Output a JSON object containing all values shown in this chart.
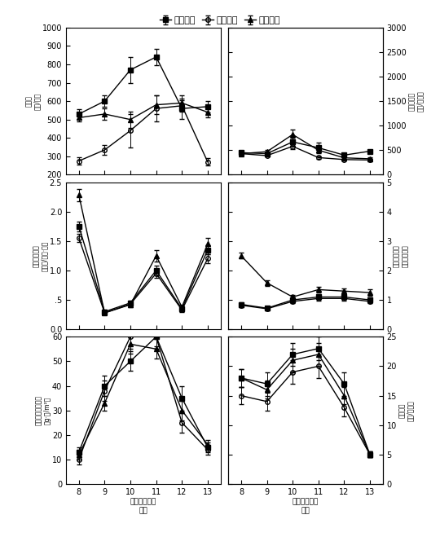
{
  "legend_labels": [
    "常规水稺",
    "传统鸭稺",
    "两鸭套养"
  ],
  "x": [
    8,
    9,
    10,
    11,
    12,
    13
  ],
  "panel_top_left": {
    "series": [
      [
        530,
        600,
        770,
        840,
        560,
        570
      ],
      [
        275,
        335,
        440,
        560,
        575,
        270
      ],
      [
        510,
        530,
        500,
        580,
        590,
        540
      ]
    ],
    "yerr": [
      [
        25,
        30,
        70,
        45,
        55,
        30
      ],
      [
        20,
        25,
        90,
        70,
        30,
        20
      ],
      [
        20,
        30,
        45,
        50,
        40,
        30
      ]
    ],
    "ylim": [
      200,
      1000
    ],
    "yticks": [
      200,
      300,
      400,
      500,
      600,
      700,
      800,
      900,
      1000
    ],
    "ylabel_left": "稼飞虏\n（头/丛）",
    "xlabel": ""
  },
  "panel_top_right": {
    "series": [
      [
        450,
        430,
        670,
        550,
        400,
        480
      ],
      [
        430,
        390,
        580,
        350,
        310,
        300
      ],
      [
        430,
        470,
        820,
        500,
        345,
        325
      ]
    ],
    "yerr": [
      [
        30,
        30,
        80,
        100,
        30,
        30
      ],
      [
        20,
        20,
        50,
        30,
        20,
        20
      ],
      [
        20,
        35,
        100,
        60,
        25,
        25
      ]
    ],
    "ylim": [
      0,
      3000
    ],
    "yticks": [
      0,
      500,
      1000,
      1500,
      2000,
      2500,
      3000
    ],
    "ylabel_right": "稼纵卷叶蟟\n（头/百丛）",
    "xlabel": ""
  },
  "panel_mid_left": {
    "series": [
      [
        1.75,
        0.3,
        0.45,
        1.0,
        0.35,
        1.35
      ],
      [
        1.55,
        0.28,
        0.43,
        0.95,
        0.33,
        1.2
      ],
      [
        2.28,
        0.28,
        0.42,
        1.25,
        0.38,
        1.45
      ]
    ],
    "yerr": [
      [
        0.08,
        0.04,
        0.04,
        0.08,
        0.04,
        0.08
      ],
      [
        0.07,
        0.03,
        0.04,
        0.07,
        0.03,
        0.07
      ],
      [
        0.1,
        0.03,
        0.04,
        0.1,
        0.04,
        0.1
      ]
    ],
    "ylim": [
      0.0,
      2.5
    ],
    "yticks": [
      0.0,
      0.5,
      1.0,
      1.5,
      2.0,
      2.5
    ],
    "ytick_labels": [
      "0.0",
      ".5",
      "1.0",
      "1.5",
      "2.0",
      "2.5"
    ],
    "ylabel_left": "三化蟟钒蛀率\n（蛀茎/百丛·天）",
    "xlabel": ""
  },
  "panel_mid_right": {
    "series": [
      [
        0.85,
        0.72,
        1.0,
        1.1,
        1.1,
        1.0
      ],
      [
        0.82,
        0.7,
        0.95,
        1.05,
        1.05,
        0.95
      ],
      [
        2.5,
        1.58,
        1.1,
        1.35,
        1.3,
        1.25
      ]
    ],
    "yerr": [
      [
        0.06,
        0.06,
        0.08,
        0.08,
        0.08,
        0.08
      ],
      [
        0.06,
        0.05,
        0.07,
        0.07,
        0.07,
        0.07
      ],
      [
        0.1,
        0.1,
        0.08,
        0.1,
        0.1,
        0.1
      ]
    ],
    "ylim": [
      0,
      5
    ],
    "yticks": [
      0,
      1,
      2,
      3,
      4,
      5
    ],
    "ylabel_right": "二化蟟蛀茎率\n（以百丛计）",
    "xlabel": ""
  },
  "panel_bot_left": {
    "series": [
      [
        13,
        40,
        50,
        60,
        35,
        15
      ],
      [
        10,
        38,
        60,
        60,
        25,
        14
      ],
      [
        12,
        33,
        57,
        55,
        30,
        16
      ]
    ],
    "yerr": [
      [
        2,
        4,
        4,
        5,
        5,
        2
      ],
      [
        2,
        4,
        5,
        4,
        4,
        2
      ],
      [
        2,
        3,
        4,
        4,
        4,
        2
      ]
    ],
    "ylim": [
      0,
      60
    ],
    "yticks": [
      0,
      10,
      20,
      30,
      40,
      50,
      60
    ],
    "ylabel_left": "稼田杂草鲜草重量\n（g·田/m²）",
    "xlabel": "水稼移栽周数\n早稼"
  },
  "panel_bot_right": {
    "series": [
      [
        18,
        17,
        22,
        23,
        17,
        5
      ],
      [
        15,
        14,
        19,
        20,
        13,
        5
      ],
      [
        18,
        16,
        21,
        22,
        15,
        5
      ]
    ],
    "yerr": [
      [
        1.5,
        2,
        2,
        2,
        2,
        0.5
      ],
      [
        1.5,
        1.5,
        2,
        2,
        1.5,
        0.5
      ],
      [
        1.5,
        1.5,
        2,
        2,
        1.5,
        0.5
      ]
    ],
    "ylim": [
      0,
      25
    ],
    "yticks": [
      0,
      5,
      10,
      15,
      20,
      25
    ],
    "ylabel_right": "稼田杂草\n（种/百丛）",
    "xlabel": "水稼移栽周数\n晚稼"
  },
  "colors": [
    "#000000",
    "#000000",
    "#000000"
  ],
  "markers": [
    "s",
    "o",
    "^"
  ],
  "fillstyles": [
    "full",
    "none",
    "full"
  ],
  "markersize": 4,
  "linewidth": 1.0,
  "capsize": 2
}
